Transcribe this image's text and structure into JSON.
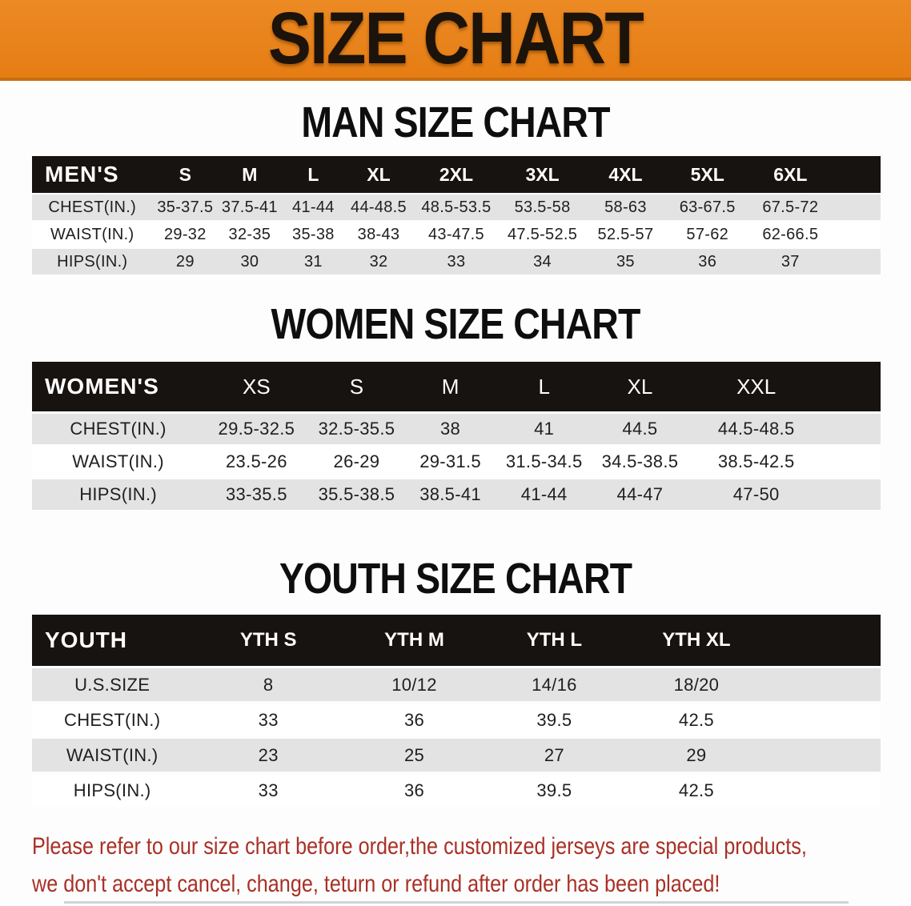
{
  "banner": {
    "title": "SIZE CHART"
  },
  "colors": {
    "banner_orange": "#e8811c",
    "banner_edge": "#c76d10",
    "header_black": "#171310",
    "row_gray": "#e3e3e3",
    "disclaimer_red": "#a93026"
  },
  "sections": {
    "men": {
      "heading": "MAN SIZE CHART",
      "corner": "MEN'S",
      "columns": [
        "S",
        "M",
        "L",
        "XL",
        "2XL",
        "3XL",
        "4XL",
        "5XL",
        "6XL"
      ],
      "rows": [
        {
          "label": "CHEST(IN.)",
          "values": [
            "35-37.5",
            "37.5-41",
            "41-44",
            "44-48.5",
            "48.5-53.5",
            "53.5-58",
            "58-63",
            "63-67.5",
            "67.5-72"
          ]
        },
        {
          "label": "WAIST(IN.)",
          "values": [
            "29-32",
            "32-35",
            "35-38",
            "38-43",
            "43-47.5",
            "47.5-52.5",
            "52.5-57",
            "57-62",
            "62-66.5"
          ]
        },
        {
          "label": "HIPS(IN.)",
          "values": [
            "29",
            "30",
            "31",
            "32",
            "33",
            "34",
            "35",
            "36",
            "37"
          ]
        }
      ]
    },
    "women": {
      "heading": "WOMEN SIZE CHART",
      "corner": "WOMEN'S",
      "columns": [
        "XS",
        "S",
        "M",
        "L",
        "XL",
        "XXL"
      ],
      "rows": [
        {
          "label": "CHEST(IN.)",
          "values": [
            "29.5-32.5",
            "32.5-35.5",
            "38",
            "41",
            "44.5",
            "44.5-48.5"
          ]
        },
        {
          "label": "WAIST(IN.)",
          "values": [
            "23.5-26",
            "26-29",
            "29-31.5",
            "31.5-34.5",
            "34.5-38.5",
            "38.5-42.5"
          ]
        },
        {
          "label": "HIPS(IN.)",
          "values": [
            "33-35.5",
            "35.5-38.5",
            "38.5-41",
            "41-44",
            "44-47",
            "47-50"
          ]
        }
      ]
    },
    "youth": {
      "heading": "YOUTH SIZE CHART",
      "corner": "YOUTH",
      "columns": [
        "YTH S",
        "YTH M",
        "YTH L",
        "YTH XL"
      ],
      "rows": [
        {
          "label": "U.S.SIZE",
          "values": [
            "8",
            "10/12",
            "14/16",
            "18/20"
          ]
        },
        {
          "label": "CHEST(IN.)",
          "values": [
            "33",
            "36",
            "39.5",
            "42.5"
          ]
        },
        {
          "label": "WAIST(IN.)",
          "values": [
            "23",
            "25",
            "27",
            "29"
          ]
        },
        {
          "label": "HIPS(IN.)",
          "values": [
            "33",
            "36",
            "39.5",
            "42.5"
          ]
        }
      ]
    }
  },
  "disclaimer": {
    "line1": "Please refer to our size chart before order,the customized jerseys are special products,",
    "line2": "we don't accept cancel, change, teturn or refund after order has been placed!"
  }
}
